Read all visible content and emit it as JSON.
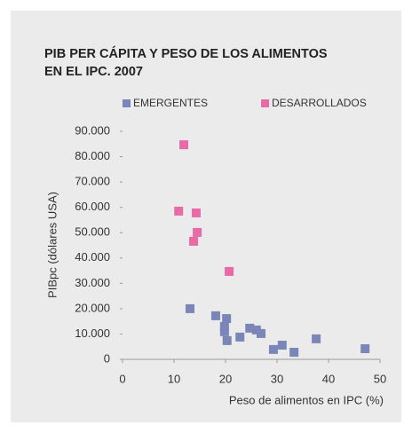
{
  "chart_data": {
    "type": "scatter",
    "title": [
      "PIB PER CÁPITA Y PESO DE LOS ALIMENTOS",
      "EN EL IPC. 2007"
    ],
    "x_label": "Peso de alimentos en IPC (%)",
    "y_label": "PIBpc (dólares USA)",
    "xlim": [
      0,
      50
    ],
    "xticks": [
      0,
      10,
      20,
      30,
      40,
      50
    ],
    "ylim": [
      0,
      90000
    ],
    "yticks": [
      0,
      {
        "value": 10000,
        "label": "10.000"
      },
      {
        "value": 20000,
        "label": "20.000"
      },
      {
        "value": 30000,
        "label": "30.000"
      },
      {
        "value": 40000,
        "label": "40.000"
      },
      {
        "value": 50000,
        "label": "50.000"
      },
      {
        "value": 60000,
        "label": "60.000"
      },
      {
        "value": 70000,
        "label": "70.000"
      },
      {
        "value": 80000,
        "label": "80.000"
      },
      {
        "value": 90000,
        "label": "90.000"
      }
    ],
    "grid": false,
    "series": [
      {
        "name": "EMERGENTES",
        "color": "#7b86b8",
        "x": [
          13.1,
          18.1,
          20.2,
          19.8,
          19.8,
          20.3,
          22.8,
          24.7,
          26.0,
          26.9,
          29.3,
          31.0,
          33.3,
          37.6,
          47.1
        ],
        "values": [
          20000,
          17200,
          16100,
          13000,
          10900,
          7400,
          8800,
          12300,
          11600,
          10200,
          3900,
          5600,
          2800,
          8100,
          4200
        ]
      },
      {
        "name": "DESARROLLADOS",
        "color": "#e86aa8",
        "x": [
          11.9,
          10.9,
          14.3,
          14.5,
          13.8,
          20.7
        ],
        "values": [
          84700,
          58500,
          57800,
          50100,
          46600,
          34700
        ]
      }
    ]
  }
}
